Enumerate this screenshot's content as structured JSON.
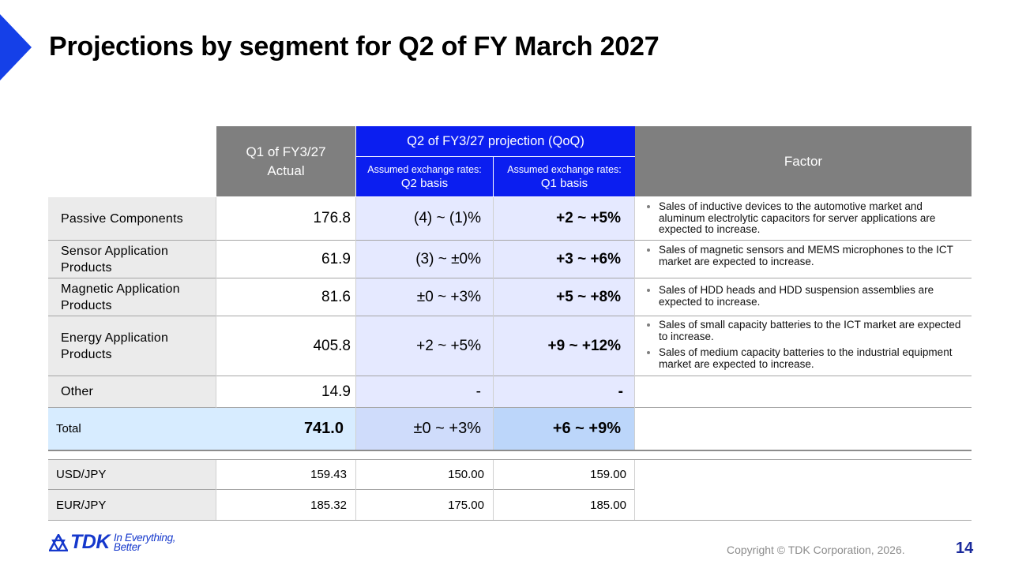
{
  "title": "Projections by segment for Q2 of FY March 2027",
  "header": {
    "q1_actual": [
      "Q1 of FY3/27",
      "Actual"
    ],
    "q2_projection": "Q2 of FY3/27 projection (QoQ)",
    "q2_basis": [
      "Assumed exchange rates:",
      "Q2 basis"
    ],
    "q1_basis": [
      "Assumed exchange rates:",
      "Q1 basis"
    ],
    "factor": "Factor"
  },
  "rows": [
    {
      "segment": "Passive Components",
      "q1_actual": "176.8",
      "q2_basis": "(4) ~ (1)%",
      "q1_basis": "+2 ~ +5%",
      "factors": [
        "Sales of inductive devices to the automotive market and aluminum electrolytic capacitors for server applications are expected to increase."
      ]
    },
    {
      "segment": "Sensor Application Products",
      "q1_actual": "61.9",
      "q2_basis": "(3) ~ ±0%",
      "q1_basis": "+3 ~ +6%",
      "factors": [
        "Sales of magnetic sensors and MEMS microphones to the ICT market are expected to increase."
      ]
    },
    {
      "segment": "Magnetic Application Products",
      "q1_actual": "81.6",
      "q2_basis": "±0 ~ +3%",
      "q1_basis": "+5 ~ +8%",
      "factors": [
        "Sales of HDD heads and HDD suspension assemblies are expected to increase."
      ]
    },
    {
      "segment": "Energy Application Products",
      "q1_actual": "405.8",
      "q2_basis": "+2 ~ +5%",
      "q1_basis": "+9 ~ +12%",
      "factors": [
        "Sales of small capacity batteries to the ICT market are expected to increase.",
        "Sales of medium capacity batteries to the industrial equipment market are expected to increase."
      ]
    },
    {
      "segment": "Other",
      "q1_actual": "14.9",
      "q2_basis": "-",
      "q1_basis": "-",
      "factors": []
    }
  ],
  "total": {
    "label": "Total",
    "q1_actual": "741.0",
    "q2_basis": "±0 ~ +3%",
    "q1_basis": "+6 ~ +9%"
  },
  "fx": [
    {
      "pair": "USD/JPY",
      "q1_actual": "159.43",
      "q2_basis": "150.00",
      "q1_basis": "159.00"
    },
    {
      "pair": "EUR/JPY",
      "q1_actual": "185.32",
      "q2_basis": "175.00",
      "q1_basis": "185.00"
    }
  ],
  "footer": {
    "logo_word": "TDK",
    "logo_tagline": [
      "In Everything,",
      "Better"
    ],
    "copyright": "Copyright © TDK Corporation, 2026.",
    "page_number": "14"
  },
  "colors": {
    "accent_blue": "#0b1ef0",
    "header_gray": "#7f7f7f",
    "projection_fill": "#e5e9ff",
    "total_fill": "#d7ecff"
  }
}
